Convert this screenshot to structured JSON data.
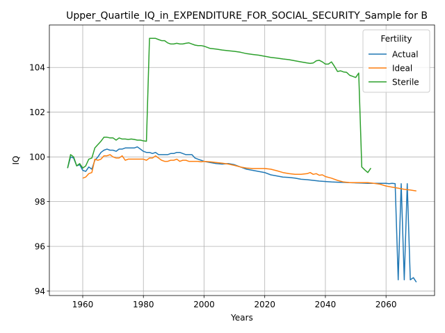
{
  "chart_data": {
    "type": "line",
    "title": "Upper_Quartile_IQ_in_EXPENDITURE_FOR_SOCIAL_SECURITY_Sample for B",
    "xlabel": "Years",
    "ylabel": "IQ",
    "xlim": [
      1949,
      2076
    ],
    "ylim": [
      93.8,
      105.9
    ],
    "xticks": [
      1960,
      1980,
      2000,
      2020,
      2040,
      2060
    ],
    "yticks": [
      94,
      96,
      98,
      100,
      102,
      104
    ],
    "grid": true,
    "legend": {
      "title": "Fertility",
      "placement": "top-right"
    },
    "series": [
      {
        "name": "Actual",
        "color": "#1f77b4",
        "x": [
          1955,
          1956,
          1957,
          1958,
          1959,
          1960,
          1961,
          1962,
          1963,
          1964,
          1965,
          1966,
          1967,
          1968,
          1969,
          1970,
          1971,
          1972,
          1973,
          1974,
          1975,
          1976,
          1977,
          1978,
          1979,
          1980,
          1981,
          1982,
          1983,
          1984,
          1985,
          1986,
          1987,
          1988,
          1989,
          1990,
          1991,
          1992,
          1993,
          1994,
          1995,
          1996,
          1997,
          1998,
          1999,
          2000,
          2002,
          2004,
          2006,
          2008,
          2010,
          2012,
          2014,
          2016,
          2018,
          2020,
          2022,
          2024,
          2026,
          2028,
          2030,
          2032,
          2034,
          2036,
          2038,
          2040,
          2042,
          2044,
          2046,
          2048,
          2050,
          2052,
          2054,
          2056,
          2058,
          2060,
          2061,
          2062,
          2063,
          2064,
          2065,
          2066,
          2067,
          2068,
          2069,
          2070
        ],
        "values": [
          99.5,
          100.0,
          99.95,
          99.6,
          99.65,
          99.4,
          99.35,
          99.55,
          99.45,
          99.85,
          100.0,
          100.2,
          100.3,
          100.35,
          100.3,
          100.3,
          100.25,
          100.35,
          100.35,
          100.4,
          100.4,
          100.4,
          100.4,
          100.45,
          100.35,
          100.25,
          100.2,
          100.2,
          100.15,
          100.2,
          100.1,
          100.1,
          100.1,
          100.1,
          100.15,
          100.15,
          100.2,
          100.2,
          100.15,
          100.1,
          100.1,
          100.1,
          99.95,
          99.9,
          99.85,
          99.8,
          99.75,
          99.7,
          99.68,
          99.7,
          99.65,
          99.55,
          99.45,
          99.4,
          99.35,
          99.3,
          99.2,
          99.15,
          99.1,
          99.08,
          99.05,
          99.0,
          98.98,
          98.95,
          98.92,
          98.9,
          98.88,
          98.87,
          98.86,
          98.85,
          98.84,
          98.83,
          98.82,
          98.82,
          98.82,
          98.82,
          98.8,
          98.82,
          98.8,
          94.5,
          98.8,
          94.5,
          98.8,
          94.5,
          94.6,
          94.4
        ]
      },
      {
        "name": "Ideal",
        "color": "#ff7f0e",
        "x": [
          1960,
          1961,
          1962,
          1963,
          1964,
          1965,
          1966,
          1967,
          1968,
          1969,
          1970,
          1971,
          1972,
          1973,
          1974,
          1975,
          1976,
          1977,
          1978,
          1979,
          1980,
          1981,
          1982,
          1983,
          1984,
          1985,
          1986,
          1987,
          1988,
          1989,
          1990,
          1991,
          1992,
          1993,
          1994,
          1995,
          1996,
          1997,
          1998,
          1999,
          2000,
          2002,
          2004,
          2006,
          2008,
          2010,
          2012,
          2014,
          2016,
          2018,
          2020,
          2022,
          2024,
          2026,
          2028,
          2030,
          2032,
          2034,
          2035,
          2036,
          2037,
          2038,
          2039,
          2040,
          2042,
          2044,
          2046,
          2048,
          2050,
          2052,
          2054,
          2056,
          2058,
          2060,
          2062,
          2064,
          2066,
          2068,
          2070
        ],
        "values": [
          99.05,
          99.1,
          99.25,
          99.3,
          99.9,
          99.85,
          99.9,
          100.05,
          100.05,
          100.1,
          100.0,
          99.95,
          99.95,
          100.05,
          99.85,
          99.9,
          99.9,
          99.9,
          99.9,
          99.9,
          99.9,
          99.85,
          99.95,
          99.95,
          100.05,
          99.95,
          99.85,
          99.8,
          99.8,
          99.85,
          99.85,
          99.9,
          99.8,
          99.85,
          99.85,
          99.8,
          99.8,
          99.8,
          99.8,
          99.78,
          99.8,
          99.78,
          99.75,
          99.72,
          99.68,
          99.62,
          99.55,
          99.5,
          99.48,
          99.48,
          99.48,
          99.45,
          99.38,
          99.3,
          99.25,
          99.22,
          99.22,
          99.25,
          99.3,
          99.22,
          99.25,
          99.18,
          99.2,
          99.12,
          99.05,
          98.95,
          98.88,
          98.85,
          98.85,
          98.85,
          98.85,
          98.82,
          98.78,
          98.7,
          98.65,
          98.6,
          98.55,
          98.52,
          98.48
        ]
      },
      {
        "name": "Sterile",
        "color": "#2ca02c",
        "x": [
          1955,
          1956,
          1957,
          1958,
          1959,
          1960,
          1961,
          1962,
          1963,
          1964,
          1965,
          1966,
          1967,
          1968,
          1969,
          1970,
          1971,
          1972,
          1973,
          1974,
          1975,
          1976,
          1977,
          1978,
          1979,
          1980,
          1981,
          1982,
          1983,
          1984,
          1985,
          1986,
          1987,
          1988,
          1989,
          1990,
          1991,
          1992,
          1993,
          1994,
          1995,
          1996,
          1997,
          1998,
          1999,
          2000,
          2002,
          2004,
          2006,
          2008,
          2010,
          2012,
          2014,
          2016,
          2018,
          2020,
          2022,
          2024,
          2026,
          2028,
          2030,
          2032,
          2034,
          2035,
          2036,
          2037,
          2038,
          2039,
          2040,
          2041,
          2042,
          2043,
          2044,
          2045,
          2046,
          2047,
          2048,
          2049,
          2050,
          2051,
          2052,
          2053,
          2054,
          2055
        ],
        "values": [
          99.5,
          100.1,
          100.0,
          99.6,
          99.7,
          99.5,
          99.6,
          99.9,
          99.95,
          100.4,
          100.55,
          100.7,
          100.88,
          100.88,
          100.85,
          100.85,
          100.75,
          100.85,
          100.8,
          100.8,
          100.78,
          100.8,
          100.78,
          100.75,
          100.75,
          100.72,
          100.7,
          105.3,
          105.3,
          105.3,
          105.25,
          105.2,
          105.2,
          105.1,
          105.05,
          105.05,
          105.08,
          105.05,
          105.05,
          105.08,
          105.1,
          105.05,
          105.0,
          104.98,
          104.98,
          104.95,
          104.85,
          104.82,
          104.78,
          104.75,
          104.72,
          104.68,
          104.62,
          104.58,
          104.55,
          104.5,
          104.45,
          104.42,
          104.38,
          104.35,
          104.3,
          104.25,
          104.2,
          104.18,
          104.2,
          104.3,
          104.32,
          104.25,
          104.15,
          104.15,
          104.25,
          104.05,
          103.82,
          103.85,
          103.8,
          103.78,
          103.65,
          103.6,
          103.55,
          103.75,
          99.55,
          99.42,
          99.3,
          99.5
        ]
      }
    ]
  }
}
